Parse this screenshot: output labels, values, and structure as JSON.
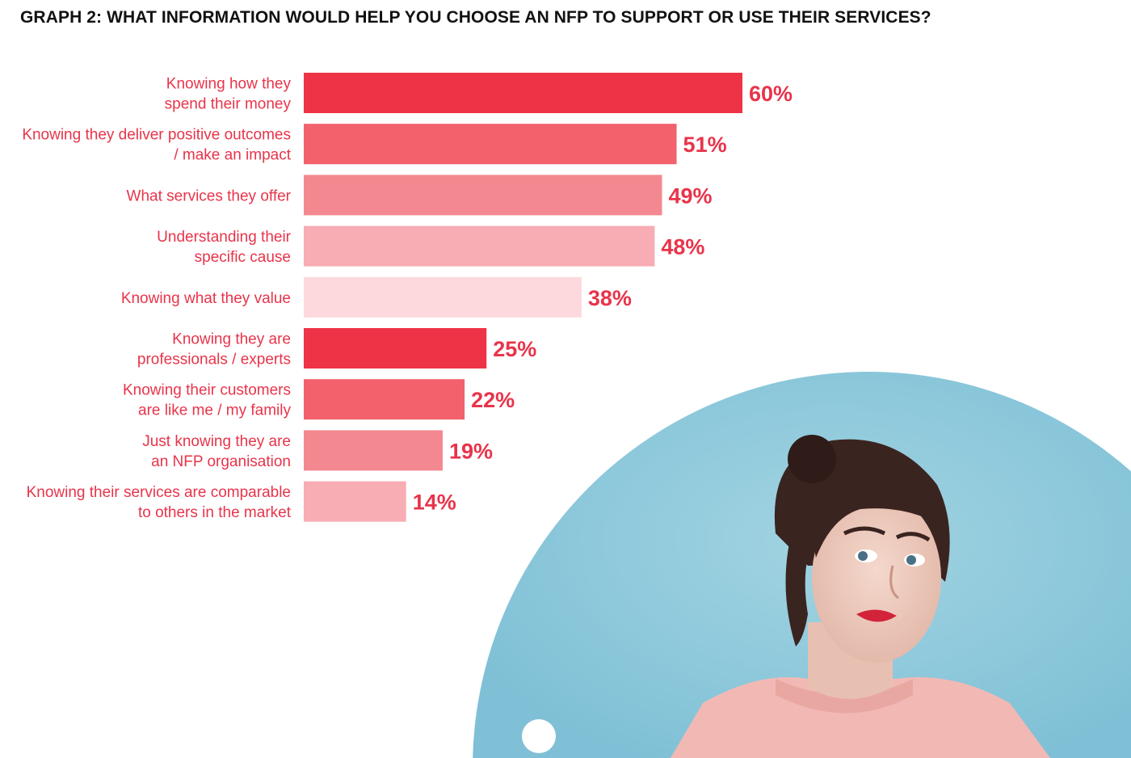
{
  "chart_data": {
    "type": "bar",
    "orientation": "horizontal",
    "title": "GRAPH 2: WHAT INFORMATION WOULD HELP YOU CHOOSE AN NFP TO SUPPORT OR USE THEIR SERVICES?",
    "categories": [
      [
        "Knowing how they",
        "spend their money"
      ],
      [
        "Knowing they deliver positive outcomes",
        "/ make an impact"
      ],
      [
        "What services they offer"
      ],
      [
        "Understanding their",
        "specific cause"
      ],
      [
        "Knowing what they value"
      ],
      [
        "Knowing they are",
        "professionals / experts"
      ],
      [
        "Knowing their customers",
        "are like me / my family"
      ],
      [
        "Just knowing they are",
        "an NFP organisation"
      ],
      [
        "Knowing their services are comparable",
        "to others in the market"
      ]
    ],
    "values": [
      60,
      51,
      49,
      48,
      38,
      25,
      22,
      19,
      14
    ],
    "value_labels": [
      "60%",
      "51%",
      "49%",
      "48%",
      "38%",
      "25%",
      "22%",
      "19%",
      "14%"
    ],
    "bar_colors": [
      "#ef3347",
      "#f2616c",
      "#f48890",
      "#f7adb3",
      "#fdd9dd",
      "#ef3347",
      "#f2616c",
      "#f48890",
      "#f7adb3"
    ],
    "xlim": [
      0,
      100
    ],
    "grid": false,
    "legend": "none"
  },
  "colors": {
    "label_text": "#e8344a",
    "title_text": "#111111",
    "photo_backdrop": "#8ec9db"
  },
  "icons": {
    "photo": "woman-portrait-photo",
    "dot": "white-dot-icon"
  }
}
